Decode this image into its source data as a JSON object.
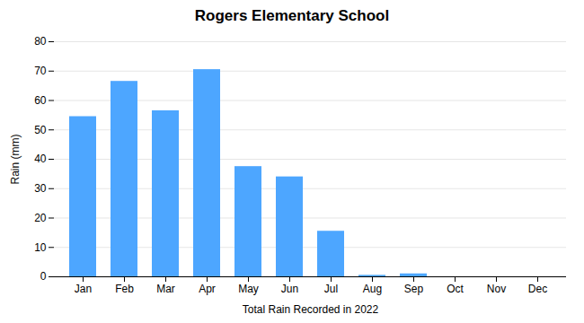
{
  "chart_data": {
    "type": "bar",
    "title": "Rogers Elementary School",
    "xlabel": "Total Rain Recorded in 2022",
    "ylabel": "Rain (mm)",
    "categories": [
      "Jan",
      "Feb",
      "Mar",
      "Apr",
      "May",
      "Jun",
      "Jul",
      "Aug",
      "Sep",
      "Oct",
      "Nov",
      "Dec"
    ],
    "values": [
      54.5,
      66.5,
      56.5,
      70.5,
      37.5,
      34.0,
      15.5,
      0.5,
      1.0,
      0,
      0,
      0
    ],
    "color": "#4DA6FF",
    "ylim": [
      0,
      80
    ],
    "yticks": [
      0,
      10,
      20,
      30,
      40,
      50,
      60,
      70,
      80
    ],
    "grid": true
  }
}
